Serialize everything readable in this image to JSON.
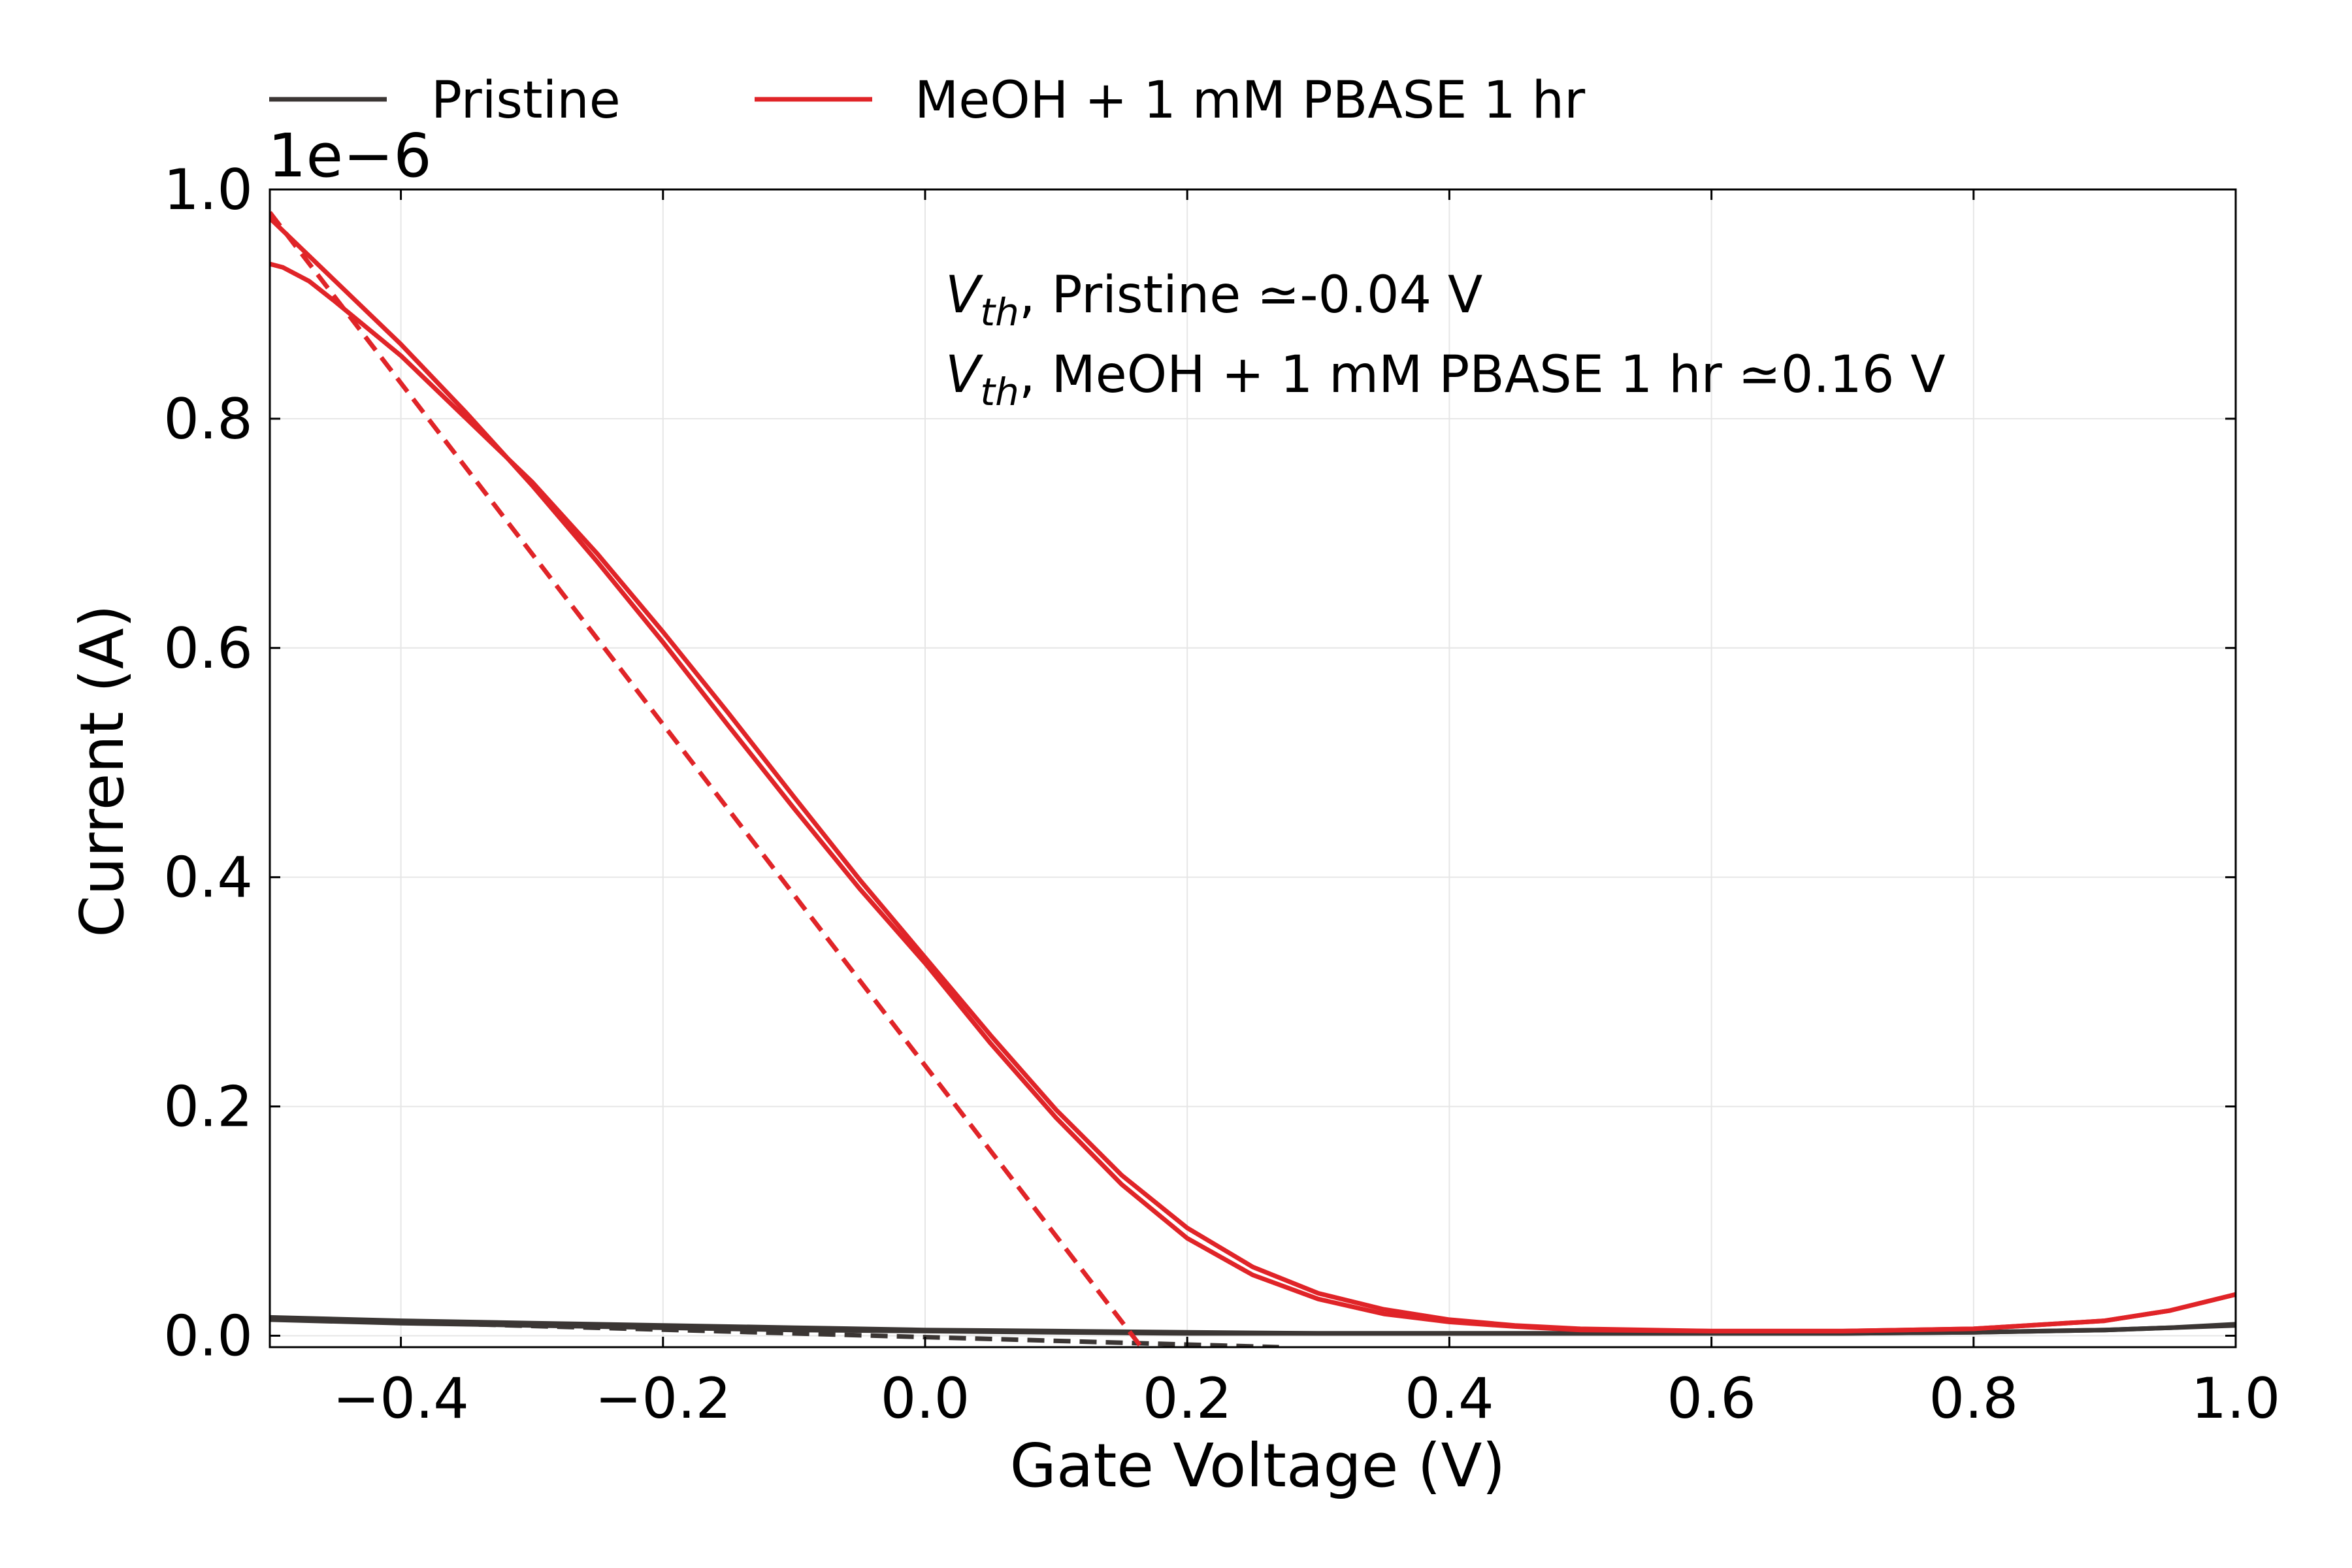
{
  "chart_data": {
    "type": "line",
    "xlabel": "Gate Voltage (V)",
    "ylabel": "Current (A)",
    "y_offset_text": "1e−6",
    "xlim": [
      -0.5,
      1.0
    ],
    "ylim": [
      -0.01,
      1.0
    ],
    "x_ticks": [
      -0.4,
      -0.2,
      0.0,
      0.2,
      0.4,
      0.6,
      0.8,
      1.0
    ],
    "x_tick_labels": [
      "−0.4",
      "−0.2",
      "0.0",
      "0.2",
      "0.4",
      "0.6",
      "0.8",
      "1.0"
    ],
    "y_ticks": [
      0.0,
      0.2,
      0.4,
      0.6,
      0.8,
      1.0
    ],
    "y_tick_labels": [
      "0.0",
      "0.2",
      "0.4",
      "0.6",
      "0.8",
      "1.0"
    ],
    "grid": true,
    "legend": {
      "placement": "top, above plot",
      "entries": [
        "Pristine",
        "MeOH + 1 mM PBASE 1 hr"
      ]
    },
    "annotations": [
      {
        "symbol": "V",
        "subscript": "th",
        "text": ", Pristine ≃-0.04 V"
      },
      {
        "symbol": "V",
        "subscript": "th",
        "text": ", MeOH + 1 mM PBASE 1 hr ≃0.16 V"
      }
    ],
    "series": [
      {
        "name": "Pristine",
        "color": "#3b3634",
        "style": "solid",
        "x": [
          -0.5,
          -0.4,
          -0.3,
          -0.2,
          -0.1,
          0.0,
          0.1,
          0.2,
          0.3,
          0.4,
          0.5,
          0.6,
          0.7,
          0.8,
          0.9,
          0.95,
          1.0
        ],
        "y": [
          0.016,
          0.013,
          0.011,
          0.009,
          0.007,
          0.005,
          0.004,
          0.003,
          0.002,
          0.002,
          0.002,
          0.002,
          0.002,
          0.003,
          0.005,
          0.007,
          0.01
        ]
      },
      {
        "name": "Pristine",
        "color": "#3b3634",
        "style": "solid",
        "x": [
          -0.5,
          -0.4,
          -0.3,
          -0.2,
          -0.1,
          0.0,
          0.1,
          0.2,
          0.3,
          0.4,
          0.5,
          0.6,
          0.7,
          0.8,
          0.9,
          0.95,
          1.0
        ],
        "y": [
          0.014,
          0.011,
          0.009,
          0.007,
          0.005,
          0.004,
          0.003,
          0.002,
          0.002,
          0.002,
          0.002,
          0.002,
          0.002,
          0.003,
          0.005,
          0.007,
          0.009
        ]
      },
      {
        "name": "Pristine",
        "color": "#3b3634",
        "style": "dashed",
        "x": [
          -0.5,
          0.27
        ],
        "y": [
          0.015,
          -0.01
        ]
      },
      {
        "name": "MeOH + 1 mM PBASE 1 hr",
        "color": "#e02428",
        "style": "solid",
        "x": [
          -0.5,
          -0.49,
          -0.47,
          -0.45,
          -0.4,
          -0.35,
          -0.3,
          -0.25,
          -0.2,
          -0.15,
          -0.1,
          -0.05,
          0.0,
          0.05,
          0.1,
          0.15,
          0.2,
          0.25,
          0.3,
          0.35,
          0.4,
          0.45,
          0.5,
          0.6,
          0.7,
          0.8,
          0.9,
          0.95,
          1.0
        ],
        "y": [
          0.935,
          0.932,
          0.92,
          0.902,
          0.855,
          0.8,
          0.745,
          0.682,
          0.614,
          0.543,
          0.47,
          0.398,
          0.33,
          0.262,
          0.197,
          0.14,
          0.094,
          0.06,
          0.037,
          0.023,
          0.014,
          0.009,
          0.006,
          0.004,
          0.004,
          0.006,
          0.013,
          0.022,
          0.036
        ]
      },
      {
        "name": "MeOH + 1 mM PBASE 1 hr",
        "color": "#e02428",
        "style": "solid",
        "x": [
          -0.5,
          -0.45,
          -0.4,
          -0.35,
          -0.3,
          -0.25,
          -0.2,
          -0.15,
          -0.1,
          -0.05,
          0.0,
          0.05,
          0.1,
          0.15,
          0.2,
          0.25,
          0.3,
          0.35,
          0.4,
          0.45,
          0.5,
          0.6,
          0.7,
          0.8,
          0.9,
          0.95,
          1.0
        ],
        "y": [
          0.975,
          0.92,
          0.865,
          0.805,
          0.742,
          0.675,
          0.605,
          0.532,
          0.46,
          0.39,
          0.325,
          0.255,
          0.19,
          0.132,
          0.085,
          0.053,
          0.032,
          0.019,
          0.012,
          0.008,
          0.005,
          0.004,
          0.004,
          0.006,
          0.013,
          0.022,
          0.036
        ]
      },
      {
        "name": "MeOH + 1 mM PBASE 1 hr",
        "color": "#e02428",
        "style": "dashed",
        "x": [
          -0.5,
          0.165
        ],
        "y": [
          0.98,
          -0.01
        ]
      }
    ]
  }
}
